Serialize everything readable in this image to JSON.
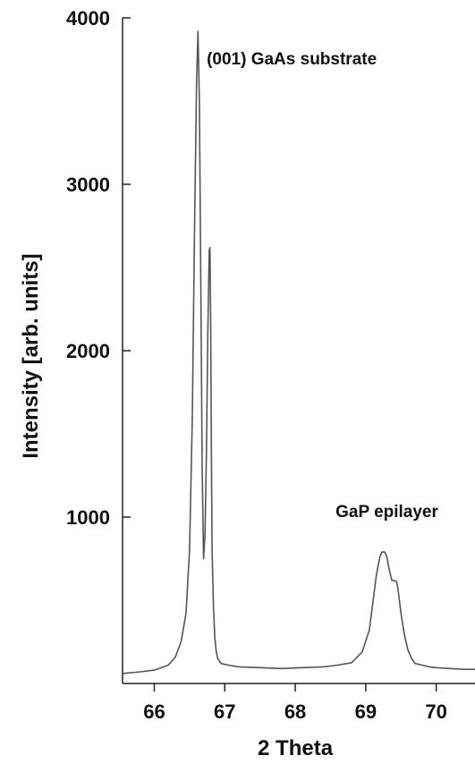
{
  "chart_data": {
    "type": "line",
    "title": "",
    "xlabel": "2 Theta",
    "ylabel": "Intensity [arb. units]",
    "xlim": [
      65.55,
      70.55
    ],
    "ylim": [
      0,
      4000
    ],
    "xticks": [
      66,
      67,
      68,
      69,
      70
    ],
    "yticks": [
      1000,
      2000,
      3000,
      4000
    ],
    "x_tick_labels": [
      "66",
      "67",
      "68",
      "69",
      "70"
    ],
    "y_tick_labels": [
      "1000",
      "2000",
      "3000",
      "4000"
    ],
    "grid": false,
    "line_color": "#555555",
    "annotations": [
      {
        "text": "(001) GaAs substrate",
        "x": 67.95,
        "y": 3720
      },
      {
        "text": "GaP epilayer",
        "x": 69.3,
        "y": 1000
      }
    ],
    "series": [
      {
        "x": [
          65.55,
          65.8,
          66.0,
          66.2,
          66.3,
          66.38,
          66.45,
          66.5,
          66.54,
          66.57,
          66.6,
          66.62,
          66.64,
          66.66,
          66.68,
          66.7,
          66.72,
          66.74,
          66.76,
          66.78,
          66.79,
          66.8,
          66.81,
          66.82,
          66.84,
          66.86,
          66.88,
          66.9,
          66.95,
          67.05,
          67.2,
          67.5,
          67.8,
          68.1,
          68.4,
          68.6,
          68.8,
          68.95,
          69.05,
          69.1,
          69.15,
          69.2,
          69.23,
          69.27,
          69.3,
          69.33,
          69.37,
          69.4,
          69.44,
          69.46,
          69.5,
          69.55,
          69.6,
          69.65,
          69.7,
          69.8,
          69.9,
          70.0,
          70.2,
          70.4,
          70.55
        ],
        "y": [
          60,
          70,
          80,
          110,
          160,
          250,
          420,
          800,
          1600,
          2700,
          3600,
          3920,
          3500,
          2400,
          1300,
          750,
          900,
          1400,
          2100,
          2600,
          2620,
          2200,
          1400,
          800,
          450,
          270,
          190,
          150,
          120,
          110,
          100,
          95,
          90,
          95,
          100,
          110,
          125,
          190,
          320,
          480,
          650,
          760,
          790,
          790,
          760,
          690,
          620,
          620,
          610,
          560,
          420,
          290,
          200,
          150,
          120,
          110,
          100,
          95,
          90,
          85,
          85
        ]
      }
    ]
  }
}
